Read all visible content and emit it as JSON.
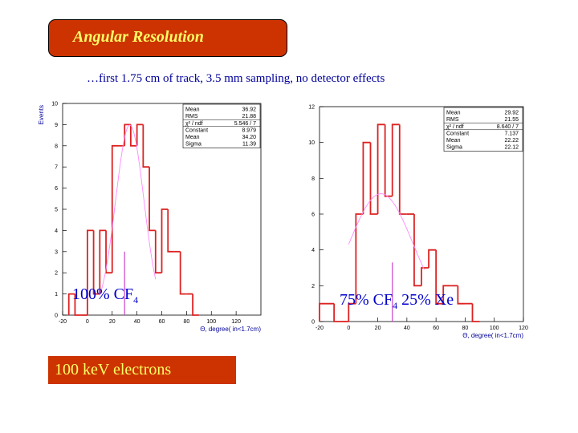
{
  "header": {
    "title": "Angular Resolution"
  },
  "subtitle": "…first 1.75 cm of track, 3.5 mm sampling, no detector effects",
  "footer": {
    "energy_label": "100 keV electrons"
  },
  "colors": {
    "histogram": "#dd2222",
    "fit": "#ff88ff",
    "marker": "#cc44cc",
    "axis": "#000000",
    "label": "#000099"
  },
  "chart_data": [
    {
      "type": "bar",
      "title": "",
      "gas_label_main": "100% CF",
      "gas_label_sub": "4",
      "xlabel": "Θ, degree( in<1.7cm)",
      "ylabel": "Events",
      "xlim": [
        -20,
        140
      ],
      "ylim": [
        0,
        10
      ],
      "x_ticks": [
        -20,
        0,
        20,
        40,
        60,
        80,
        100,
        120
      ],
      "y_ticks": [
        0,
        1,
        2,
        3,
        4,
        5,
        6,
        7,
        8,
        9,
        10
      ],
      "bin_edges": [
        -15,
        -10,
        -5,
        0,
        5,
        10,
        15,
        20,
        25,
        30,
        35,
        40,
        45,
        50,
        55,
        60,
        65,
        70,
        75,
        80,
        85,
        90
      ],
      "counts": [
        1,
        0,
        0,
        4,
        1,
        4,
        2,
        8,
        8,
        9,
        8,
        9,
        7,
        4,
        2,
        5,
        3,
        3,
        1,
        1,
        0
      ],
      "fit": {
        "constant": 8.979,
        "mean": 34.2,
        "sigma": 11.39,
        "x_range": [
          10,
          55
        ]
      },
      "marker_x": 30,
      "marker_height": 3,
      "stats": [
        {
          "label": "Mean",
          "value": "36.92"
        },
        {
          "label": "RMS",
          "value": "21.88"
        },
        {
          "label": "χ² / ndf",
          "value": "5.546  /  7"
        },
        {
          "label": "Constant",
          "value": "8.979"
        },
        {
          "label": "Mean",
          "value": "34.20"
        },
        {
          "label": "Sigma",
          "value": "11.39"
        }
      ]
    },
    {
      "type": "bar",
      "title": "",
      "gas_label_main": "75% CF",
      "gas_label_sub": "4",
      "gas_label_tail": " 25% Xe",
      "xlabel": "Θ, degree( in<1.7cm)",
      "ylabel": "",
      "xlim": [
        -20,
        120
      ],
      "ylim": [
        0,
        12
      ],
      "x_ticks": [
        -20,
        0,
        20,
        40,
        60,
        80,
        100,
        120
      ],
      "y_ticks": [
        0,
        2,
        4,
        6,
        8,
        10,
        12
      ],
      "bin_edges": [
        -20,
        -10,
        -5,
        0,
        5,
        10,
        15,
        20,
        25,
        30,
        35,
        40,
        45,
        50,
        55,
        60,
        65,
        70,
        75,
        80,
        85,
        90
      ],
      "counts": [
        1,
        0,
        0,
        1,
        6,
        10,
        6,
        11,
        7,
        11,
        6,
        6,
        2,
        3,
        4,
        1,
        2,
        2,
        1,
        1,
        0
      ],
      "fit": {
        "constant": 7.137,
        "mean": 22.22,
        "sigma": 22.12,
        "x_range": [
          0,
          52
        ]
      },
      "marker_x": 30,
      "marker_height": 3.3,
      "stats": [
        {
          "label": "Mean",
          "value": "29.92"
        },
        {
          "label": "RMS",
          "value": "21.55"
        },
        {
          "label": "χ² / ndf",
          "value": "8.640  /  7"
        },
        {
          "label": "Constant",
          "value": "7.137"
        },
        {
          "label": "Mean",
          "value": "22.22"
        },
        {
          "label": "Sigma",
          "value": "22.12"
        }
      ]
    }
  ]
}
